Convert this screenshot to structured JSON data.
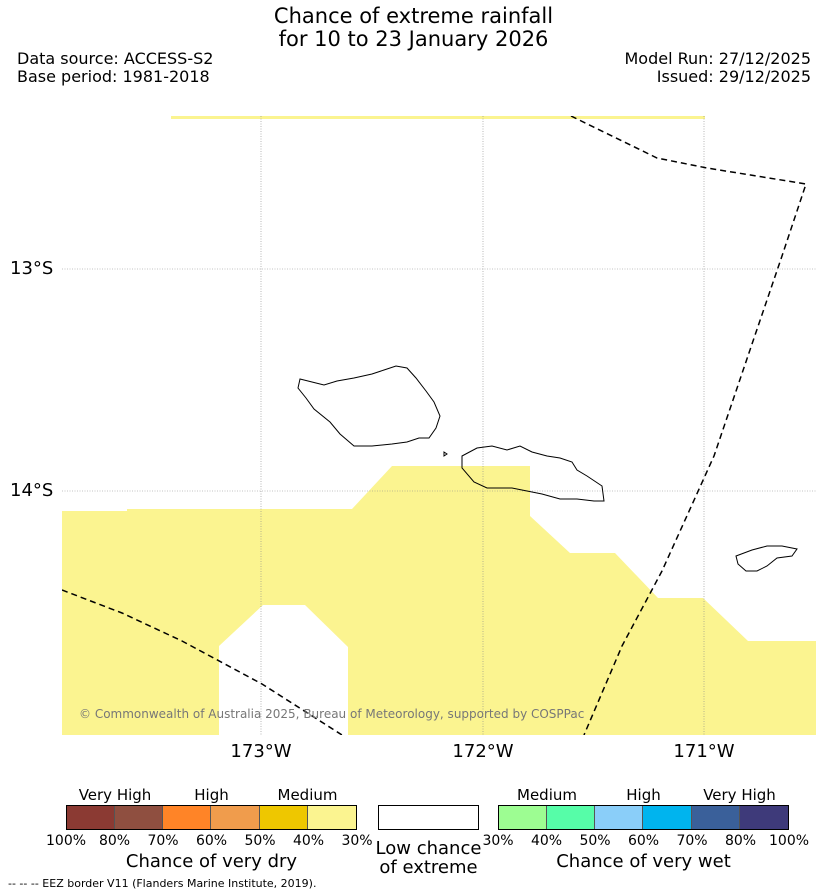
{
  "title": {
    "line1": "Chance of extreme rainfall",
    "line2": "for 10 to 23 January 2026"
  },
  "header": {
    "data_source": "Data source: ACCESS-S2",
    "base_period": "Base period: 1981-2018",
    "model_run": "Model Run: 27/12/2025",
    "issued": "Issued: 29/12/2025"
  },
  "map": {
    "lat_labels": [
      "13°S",
      "14°S"
    ],
    "lon_labels": [
      "173°W",
      "172°W",
      "171°W"
    ],
    "copyright": "© Commonwealth of Australia 2025, Bureau of Meteorology, supported by COSPPac",
    "shaded_category": "Medium chance of very dry (30-40%)",
    "shade_color": "#fbf490",
    "eez_line": "dashed"
  },
  "legend": {
    "dry": {
      "categories": [
        "Very High",
        "High",
        "Medium"
      ],
      "colors": [
        "#8b3a33",
        "#8f4f40",
        "#ff8427",
        "#f09c4c",
        "#eec700",
        "#fbf490"
      ],
      "ticks": [
        "100%",
        "80%",
        "70%",
        "60%",
        "50%",
        "40%",
        "30%"
      ],
      "caption": "Chance of very dry"
    },
    "neutral": {
      "color": "#ffffff",
      "caption_line1": "Low chance",
      "caption_line2": "of extreme"
    },
    "wet": {
      "categories": [
        "Medium",
        "High",
        "Very High"
      ],
      "colors": [
        "#9dfd92",
        "#56fda8",
        "#8acef9",
        "#00b4ee",
        "#3a609a",
        "#3e3a7a"
      ],
      "ticks": [
        "30%",
        "40%",
        "50%",
        "60%",
        "70%",
        "80%",
        "100%"
      ],
      "caption": "Chance of very wet"
    }
  },
  "footnote": "--  --  -- EEZ border V11 (Flanders Marine Institute, 2019)."
}
